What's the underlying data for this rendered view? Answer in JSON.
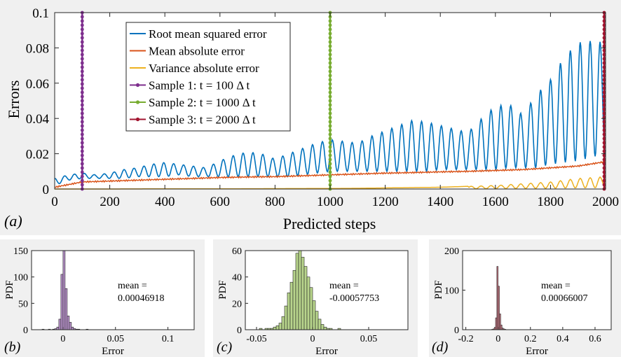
{
  "colors": {
    "rmse": "#0072BD",
    "mae": "#D95319",
    "vae": "#EDB120",
    "sample1": "#7E2F8E",
    "sample2": "#77AC30",
    "sample3": "#A2142F",
    "panel_bg": "#f0f0f0",
    "hist_b_fill": "#b48fc6",
    "hist_c_fill": "#b8d58c",
    "hist_d_fill": "#c87a86"
  },
  "chart_data": [
    {
      "id": "a",
      "type": "line",
      "panel_label": "(a)",
      "xlabel": "Predicted steps",
      "ylabel": "Errors",
      "xlim": [
        0,
        2000
      ],
      "ylim": [
        0,
        0.1
      ],
      "xticks": [
        0,
        200,
        400,
        600,
        800,
        1000,
        1200,
        1400,
        1600,
        1800,
        2000
      ],
      "yticks": [
        0,
        0.02,
        0.04,
        0.06,
        0.08,
        0.1
      ],
      "ytick_labels": [
        "0",
        "0.02",
        "0.04",
        "0.06",
        "0.08",
        "0.1"
      ],
      "grid": false,
      "legend_placement": "top-left",
      "series": [
        {
          "name": "Root mean squared error",
          "color_key": "rmse",
          "x": [
            0,
            50,
            100,
            150,
            200,
            250,
            300,
            350,
            400,
            450,
            500,
            550,
            600,
            650,
            700,
            750,
            800,
            850,
            900,
            950,
            1000,
            1050,
            1100,
            1150,
            1200,
            1250,
            1300,
            1350,
            1400,
            1450,
            1500,
            1550,
            1600,
            1650,
            1700,
            1750,
            1800,
            1850,
            1900,
            1950,
            2000
          ],
          "peak": [
            0.006,
            0.008,
            0.009,
            0.008,
            0.009,
            0.011,
            0.012,
            0.014,
            0.015,
            0.014,
            0.013,
            0.012,
            0.016,
            0.019,
            0.021,
            0.02,
            0.017,
            0.02,
            0.023,
            0.026,
            0.028,
            0.027,
            0.026,
            0.03,
            0.033,
            0.036,
            0.039,
            0.038,
            0.036,
            0.034,
            0.032,
            0.04,
            0.047,
            0.048,
            0.042,
            0.054,
            0.062,
            0.075,
            0.083,
            0.084,
            0.083
          ],
          "trough": [
            0.002,
            0.005,
            0.006,
            0.006,
            0.006,
            0.006,
            0.007,
            0.007,
            0.007,
            0.008,
            0.007,
            0.007,
            0.007,
            0.007,
            0.007,
            0.007,
            0.007,
            0.007,
            0.008,
            0.009,
            0.01,
            0.01,
            0.01,
            0.01,
            0.01,
            0.01,
            0.01,
            0.01,
            0.011,
            0.011,
            0.011,
            0.011,
            0.011,
            0.012,
            0.012,
            0.012,
            0.014,
            0.015,
            0.016,
            0.018,
            0.02
          ]
        },
        {
          "name": "Mean absolute error",
          "color_key": "mae",
          "x": [
            0,
            100,
            200,
            300,
            400,
            500,
            600,
            700,
            800,
            900,
            1000,
            1100,
            1200,
            1300,
            1400,
            1500,
            1600,
            1700,
            1800,
            1900,
            2000
          ],
          "y": [
            0.001,
            0.004,
            0.0045,
            0.005,
            0.0055,
            0.006,
            0.0065,
            0.0068,
            0.007,
            0.0075,
            0.008,
            0.0085,
            0.009,
            0.0093,
            0.0097,
            0.01,
            0.0105,
            0.011,
            0.012,
            0.013,
            0.0155
          ]
        },
        {
          "name": "Variance absolute error",
          "color_key": "vae",
          "x": [
            0,
            200,
            400,
            600,
            800,
            1000,
            1100,
            1200,
            1300,
            1400,
            1500,
            1600,
            1700,
            1800,
            1900,
            2000
          ],
          "y": [
            0,
            0,
            0.0001,
            0.0001,
            0.0002,
            0.0003,
            0.0004,
            0.0006,
            0.0008,
            0.001,
            0.0015,
            0.002,
            0.003,
            0.004,
            0.006,
            0.007
          ]
        }
      ],
      "markers": [
        {
          "name": "Sample 1: t = 100 Δ t",
          "x": 100,
          "color_key": "sample1"
        },
        {
          "name": "Sample 2: t = 1000 Δ t",
          "x": 1000,
          "color_key": "sample2"
        },
        {
          "name": "Sample 3: t = 2000 Δ t",
          "x": 2000,
          "color_key": "sample3"
        }
      ]
    },
    {
      "id": "b",
      "type": "histogram",
      "panel_label": "(b)",
      "xlabel": "Error",
      "ylabel": "PDF",
      "xlim": [
        -0.03,
        0.125
      ],
      "ylim": [
        0,
        150
      ],
      "xticks": [
        0,
        0.05,
        0.1
      ],
      "xtick_labels": [
        "0",
        "0.05",
        "0.1"
      ],
      "yticks": [
        0,
        50,
        100,
        150
      ],
      "fill_key": "hist_b_fill",
      "bin_start": -0.02,
      "bin_width": 0.002,
      "counts": [
        1,
        0,
        0,
        1,
        0,
        1,
        2,
        5,
        20,
        105,
        150,
        78,
        26,
        14,
        5,
        2,
        1,
        1,
        0,
        0,
        0,
        1
      ],
      "annotation": [
        "mean =",
        "0.00046918"
      ]
    },
    {
      "id": "c",
      "type": "histogram",
      "panel_label": "(c)",
      "xlabel": "Error",
      "ylabel": "PDF",
      "xlim": [
        -0.06,
        0.085
      ],
      "ylim": [
        0,
        60
      ],
      "xticks": [
        -0.05,
        0,
        0.05
      ],
      "xtick_labels": [
        "-0.05",
        "0",
        "0.05"
      ],
      "yticks": [
        0,
        20,
        40,
        60
      ],
      "fill_key": "hist_c_fill",
      "bin_start": -0.05,
      "bin_width": 0.0025,
      "counts": [
        0,
        1,
        0,
        1,
        1,
        1,
        2,
        3,
        5,
        10,
        18,
        28,
        36,
        45,
        58,
        60,
        55,
        48,
        40,
        32,
        22,
        14,
        8,
        4,
        2,
        1,
        1,
        0,
        0,
        1
      ],
      "annotation": [
        "mean =",
        "-0.00057753"
      ]
    },
    {
      "id": "d",
      "type": "histogram",
      "panel_label": "(d)",
      "xlabel": "Error",
      "ylabel": "PDF",
      "xlim": [
        -0.22,
        0.7
      ],
      "ylim": [
        0,
        200
      ],
      "xticks": [
        -0.2,
        0,
        0.2,
        0.4,
        0.6
      ],
      "xtick_labels": [
        "-0.2",
        "0",
        "0.2",
        "0.4",
        "0.6"
      ],
      "yticks": [
        0,
        100,
        200
      ],
      "fill_key": "hist_d_fill",
      "bin_start": -0.04,
      "bin_width": 0.008,
      "counts": [
        1,
        2,
        6,
        30,
        160,
        110,
        40,
        12,
        4,
        2,
        1
      ],
      "annotation": [
        "mean =",
        "0.00066007"
      ]
    }
  ]
}
